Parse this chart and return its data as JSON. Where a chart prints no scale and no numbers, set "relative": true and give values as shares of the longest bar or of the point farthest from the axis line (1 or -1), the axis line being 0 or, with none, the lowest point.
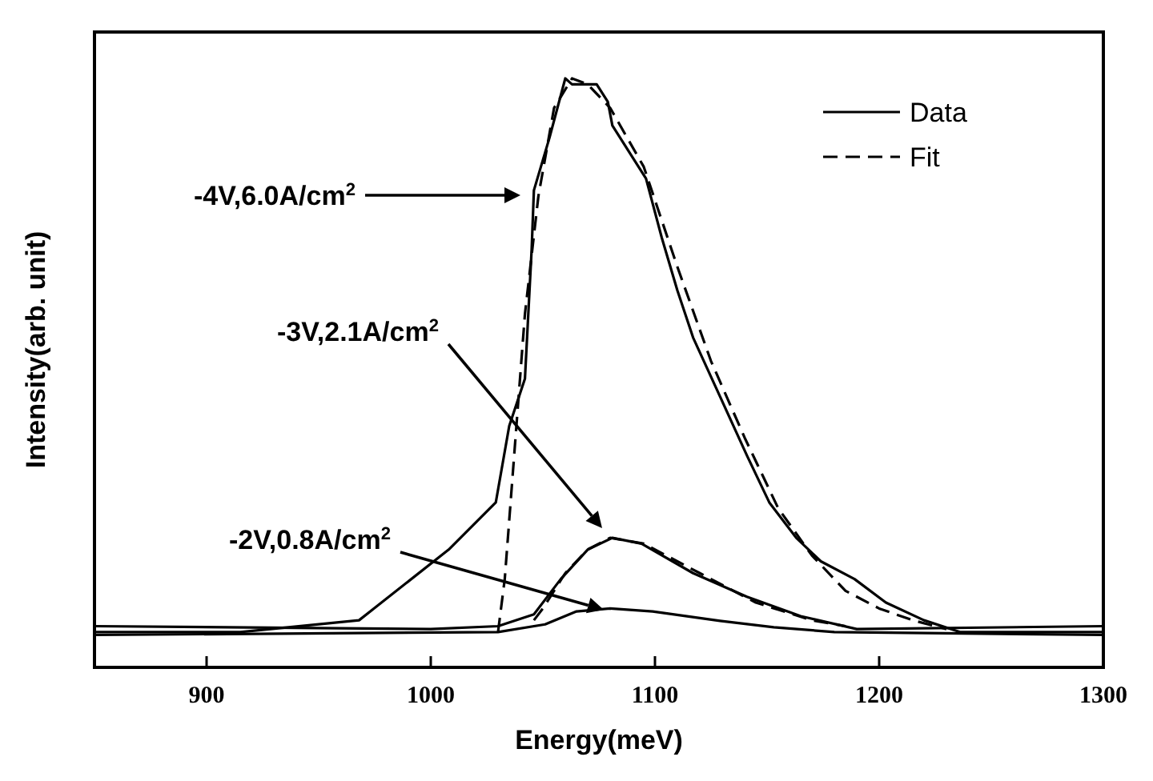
{
  "chart_data": {
    "type": "line",
    "relative": true,
    "xlabel": "Energy(meV)",
    "ylabel": "Intensity(arb. unit)",
    "xlim": [
      850,
      1300
    ],
    "xticks": [
      900,
      1000,
      1100,
      1200,
      1300
    ],
    "legend": "top right",
    "grid": false,
    "marker": "none",
    "series": [
      {
        "name": "Data",
        "color": "#000000",
        "line_style": "solid",
        "x": [
          850,
          915,
          968,
          1008,
          1029,
          1035,
          1042,
          1045,
          1046,
          1053,
          1060,
          1063,
          1074,
          1079,
          1081,
          1096,
          1103,
          1110,
          1117,
          1129,
          1141,
          1151,
          1163,
          1174,
          1189,
          1203,
          1220,
          1236,
          1300
        ],
        "values": [
          0.06,
          0.06,
          0.08,
          0.2,
          0.28,
          0.41,
          0.49,
          0.71,
          0.81,
          0.9,
          1.0,
          0.99,
          0.99,
          0.96,
          0.92,
          0.83,
          0.73,
          0.64,
          0.56,
          0.46,
          0.36,
          0.28,
          0.22,
          0.18,
          0.15,
          0.11,
          0.08,
          0.06,
          0.06
        ]
      },
      {
        "name": "Fit",
        "color": "#000000",
        "line_style": "dashed",
        "x": [
          1030,
          1033,
          1037,
          1042,
          1048,
          1055,
          1063,
          1070,
          1080,
          1095,
          1110,
          1125,
          1140,
          1155,
          1170,
          1185,
          1200,
          1215,
          1230
        ],
        "values": [
          0.06,
          0.15,
          0.35,
          0.6,
          0.8,
          0.95,
          1.0,
          0.99,
          0.95,
          0.85,
          0.68,
          0.52,
          0.39,
          0.27,
          0.19,
          0.13,
          0.1,
          0.08,
          0.065
        ]
      },
      {
        "color": "#000000",
        "line_style": "solid",
        "x": [
          850,
          1000,
          1030,
          1046,
          1058,
          1070,
          1081,
          1094,
          1117,
          1141,
          1165,
          1190,
          1300
        ],
        "values": [
          0.07,
          0.065,
          0.07,
          0.09,
          0.15,
          0.2,
          0.22,
          0.21,
          0.16,
          0.12,
          0.087,
          0.065,
          0.07
        ]
      },
      {
        "color": "#000000",
        "line_style": "dashed",
        "x": [
          1046,
          1050,
          1060,
          1070,
          1080,
          1095,
          1120,
          1145,
          1170,
          1185
        ],
        "values": [
          0.08,
          0.1,
          0.16,
          0.2,
          0.22,
          0.21,
          0.16,
          0.11,
          0.08,
          0.07
        ]
      },
      {
        "color": "#000000",
        "line_style": "solid",
        "x": [
          850,
          1030,
          1051,
          1065,
          1080,
          1099,
          1129,
          1153,
          1180,
          1300
        ],
        "values": [
          0.055,
          0.06,
          0.073,
          0.095,
          0.1,
          0.095,
          0.079,
          0.068,
          0.06,
          0.055
        ]
      }
    ],
    "annotations": [
      "-4V,6.0A/cm$^{2}$",
      "-3V,2.1A/cm$^{2}$",
      "-2V,0.8A/cm$^{2}$"
    ]
  }
}
